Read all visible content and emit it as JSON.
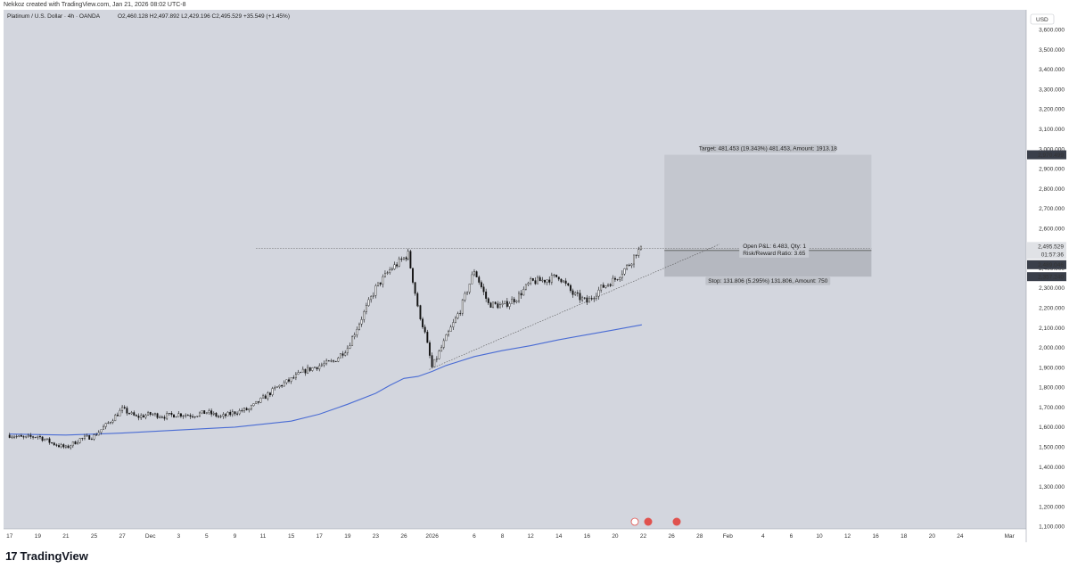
{
  "header": {
    "author_line": "Nekkoz created with TradingView.com, Jan 21, 2026 08:02 UTC-8"
  },
  "legend": {
    "symbol": "Platinum / U.S. Dollar · 4h · OANDA",
    "ohlc": "O2,460.128  H2,497.892  L2,429.196  C2,495.529  +35.549 (+1.45%)"
  },
  "currency": "USD",
  "price_axis": {
    "labels": [
      "3,600.000",
      "3,500.000",
      "3,400.000",
      "3,300.000",
      "3,200.000",
      "3,100.000",
      "3,000.000",
      "2,900.000",
      "2,800.000",
      "2,700.000",
      "2,600.000",
      "2,500.000",
      "2,400.000",
      "2,300.000",
      "2,200.000",
      "2,100.000",
      "2,000.000",
      "1,900.000",
      "1,800.000",
      "1,700.000",
      "1,600.000",
      "1,500.000",
      "1,400.000",
      "1,300.000",
      "1,200.000",
      "1,100.000"
    ],
    "values": [
      3600,
      3500,
      3400,
      3300,
      3200,
      3100,
      3000,
      2900,
      2800,
      2700,
      2600,
      2500,
      2400,
      2300,
      2200,
      2100,
      2000,
      1900,
      1800,
      1700,
      1600,
      1500,
      1400,
      1300,
      1200,
      1100
    ],
    "tags": {
      "target": {
        "text": "2,970.499",
        "value": 2970.499
      },
      "last": {
        "text": "2,495.529",
        "value": 2495.529
      },
      "countdown": {
        "text": "01:57:36"
      },
      "entry": {
        "text": "2,489.046",
        "value": 2489.046
      },
      "stop": {
        "text": "2,357.240",
        "value": 2357.24
      }
    }
  },
  "time_axis": {
    "labels": [
      "17",
      "19",
      "21",
      "25",
      "27",
      "Dec",
      "3",
      "5",
      "9",
      "11",
      "15",
      "17",
      "19",
      "23",
      "26",
      "2026",
      "6",
      "8",
      "12",
      "14",
      "16",
      "20",
      "22",
      "26",
      "28",
      "Feb",
      "4",
      "6",
      "10",
      "12",
      "16",
      "18",
      "20",
      "24",
      "Mar"
    ],
    "positions": [
      0,
      2,
      4,
      6,
      8,
      10,
      12,
      14,
      16,
      18,
      20,
      22,
      24,
      26,
      28,
      30,
      33,
      35,
      37,
      39,
      41,
      43,
      45,
      47,
      49,
      51,
      53.5,
      55.5,
      57.5,
      59.5,
      61.5,
      63.5,
      65.5,
      67.5,
      71
    ]
  },
  "position": {
    "target_label": "Target: 481.453 (19.343%) 481.453, Amount: 1913.18",
    "pnl_label": "Open P&L: 6.483, Qty: 1",
    "rr_label": "Risk/Reward Ratio: 3.65",
    "stop_label": "Stop: 131.806 (5.295%) 131.806, Amount: 750",
    "x_start": 46.5,
    "x_end": 61.2,
    "entry": 2489.046,
    "target": 2970.499,
    "stop": 2357.24
  },
  "annotations": {
    "resistance_line": {
      "price": 2500,
      "x_start": 17.5,
      "x_end": 61.2
    },
    "trendline": {
      "x1": 29.8,
      "y1": 1890,
      "x2": 50.4,
      "y2": 2520
    }
  },
  "colors": {
    "background": "#d3d6de",
    "panel": "#ffffff",
    "candle": "#111111",
    "ma": "#4a6cd4",
    "box": "#c4c7cf",
    "box_stop": "#b5b8c0",
    "tag_dark": "#3a3f4a",
    "tag_light": "#e0e2e6"
  },
  "chart_data": {
    "type": "candlestick",
    "title": "Platinum / U.S. Dollar · 4h · OANDA",
    "x_unit": "trading day index (label 17 = Nov 17, 2025)",
    "ylim": [
      1080,
      3660
    ],
    "xlim": [
      -0.3,
      72
    ],
    "closes": [
      [
        0,
        1560
      ],
      [
        1,
        1545
      ],
      [
        2,
        1555
      ],
      [
        3,
        1520
      ],
      [
        4,
        1495
      ],
      [
        5,
        1540
      ],
      [
        6,
        1555
      ],
      [
        7,
        1620
      ],
      [
        8,
        1690
      ],
      [
        9,
        1650
      ],
      [
        10,
        1665
      ],
      [
        11,
        1655
      ],
      [
        12,
        1665
      ],
      [
        13,
        1660
      ],
      [
        14,
        1675
      ],
      [
        15,
        1650
      ],
      [
        16,
        1675
      ],
      [
        17,
        1690
      ],
      [
        18,
        1745
      ],
      [
        19,
        1800
      ],
      [
        20,
        1840
      ],
      [
        21,
        1885
      ],
      [
        22,
        1910
      ],
      [
        23,
        1930
      ],
      [
        24,
        2000
      ],
      [
        25,
        2150
      ],
      [
        26,
        2300
      ],
      [
        27,
        2390
      ],
      [
        28,
        2450
      ],
      [
        28.3,
        2470
      ],
      [
        29,
        2200
      ],
      [
        29.5,
        2070
      ],
      [
        30,
        1900
      ],
      [
        31,
        2050
      ],
      [
        32,
        2190
      ],
      [
        33,
        2390
      ],
      [
        34,
        2220
      ],
      [
        35,
        2210
      ],
      [
        36,
        2250
      ],
      [
        37,
        2330
      ],
      [
        38,
        2340
      ],
      [
        39,
        2360
      ],
      [
        40,
        2270
      ],
      [
        41,
        2230
      ],
      [
        42,
        2300
      ],
      [
        43,
        2345
      ],
      [
        44,
        2420
      ],
      [
        44.5,
        2480
      ],
      [
        44.9,
        2495.529
      ]
    ],
    "ma_series": {
      "name": "",
      "points": [
        [
          0,
          1565
        ],
        [
          4,
          1560
        ],
        [
          8,
          1570
        ],
        [
          12,
          1585
        ],
        [
          16,
          1600
        ],
        [
          20,
          1630
        ],
        [
          22,
          1665
        ],
        [
          24,
          1715
        ],
        [
          26,
          1770
        ],
        [
          27,
          1810
        ],
        [
          28,
          1845
        ],
        [
          29,
          1855
        ],
        [
          30,
          1880
        ],
        [
          31,
          1910
        ],
        [
          33,
          1955
        ],
        [
          35,
          1985
        ],
        [
          37,
          2010
        ],
        [
          39,
          2040
        ],
        [
          41,
          2065
        ],
        [
          43,
          2090
        ],
        [
          44.9,
          2115
        ]
      ]
    }
  }
}
